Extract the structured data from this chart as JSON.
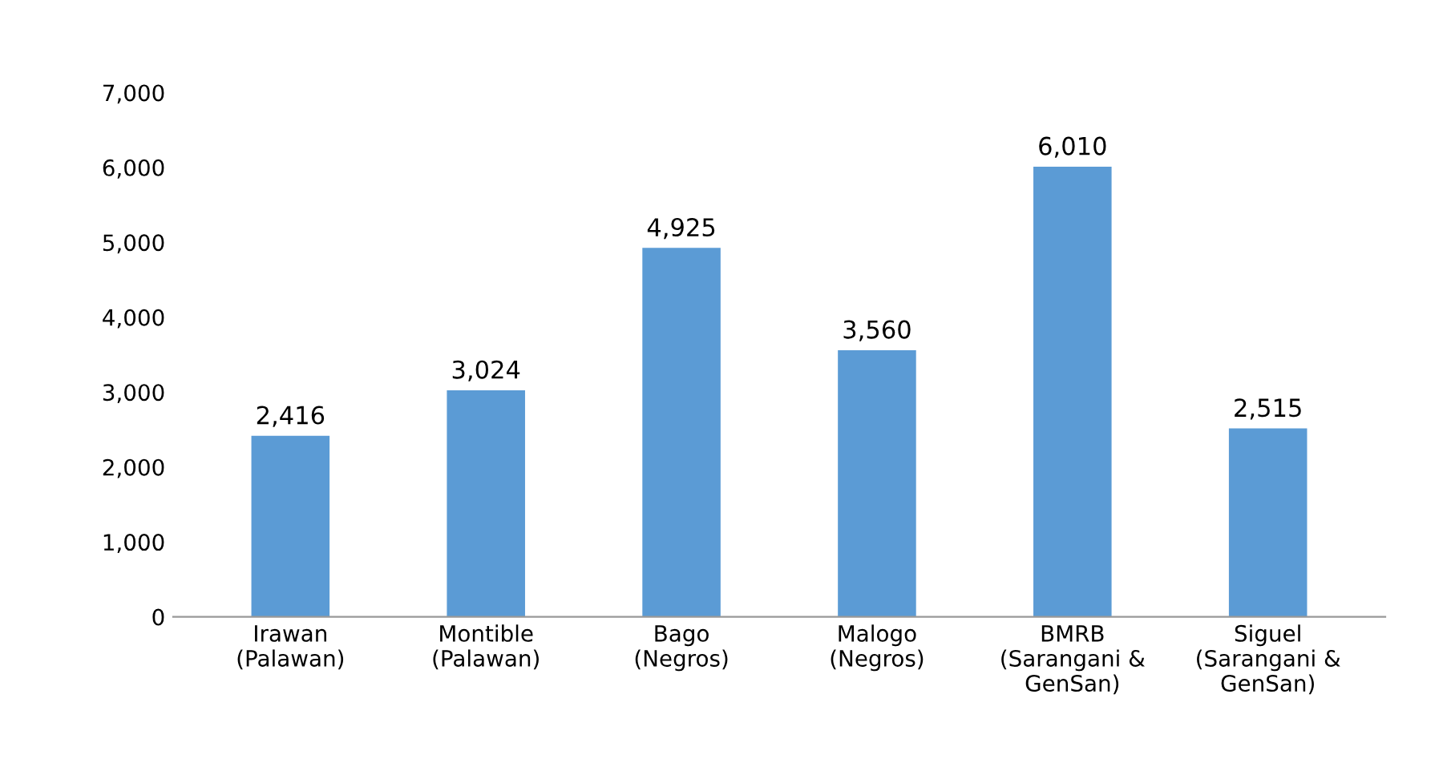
{
  "chart_data": {
    "type": "bar",
    "categories": [
      "Irawan\n(Palawan)",
      "Montible\n(Palawan)",
      "Bago\n(Negros)",
      "Malogo\n(Negros)",
      "BMRB\n(Sarangani &\nGenSan)",
      "Siguel\n(Sarangani &\nGenSan)"
    ],
    "values": [
      2416,
      3024,
      4925,
      3560,
      6010,
      2515
    ],
    "value_labels": [
      "2,416",
      "3,024",
      "4,925",
      "3,560",
      "6,010",
      "2,515"
    ],
    "color": "#5b9bd5",
    "ylim": [
      0,
      7000
    ],
    "yticks": [
      {
        "value": 0,
        "label": "0"
      },
      {
        "value": 1000,
        "label": "1,000"
      },
      {
        "value": 2000,
        "label": "2,000"
      },
      {
        "value": 3000,
        "label": "3,000"
      },
      {
        "value": 4000,
        "label": "4,000"
      },
      {
        "value": 5000,
        "label": "5,000"
      },
      {
        "value": 6000,
        "label": "6,000"
      },
      {
        "value": 7000,
        "label": "7,000"
      }
    ],
    "grid": false,
    "legend": false
  }
}
